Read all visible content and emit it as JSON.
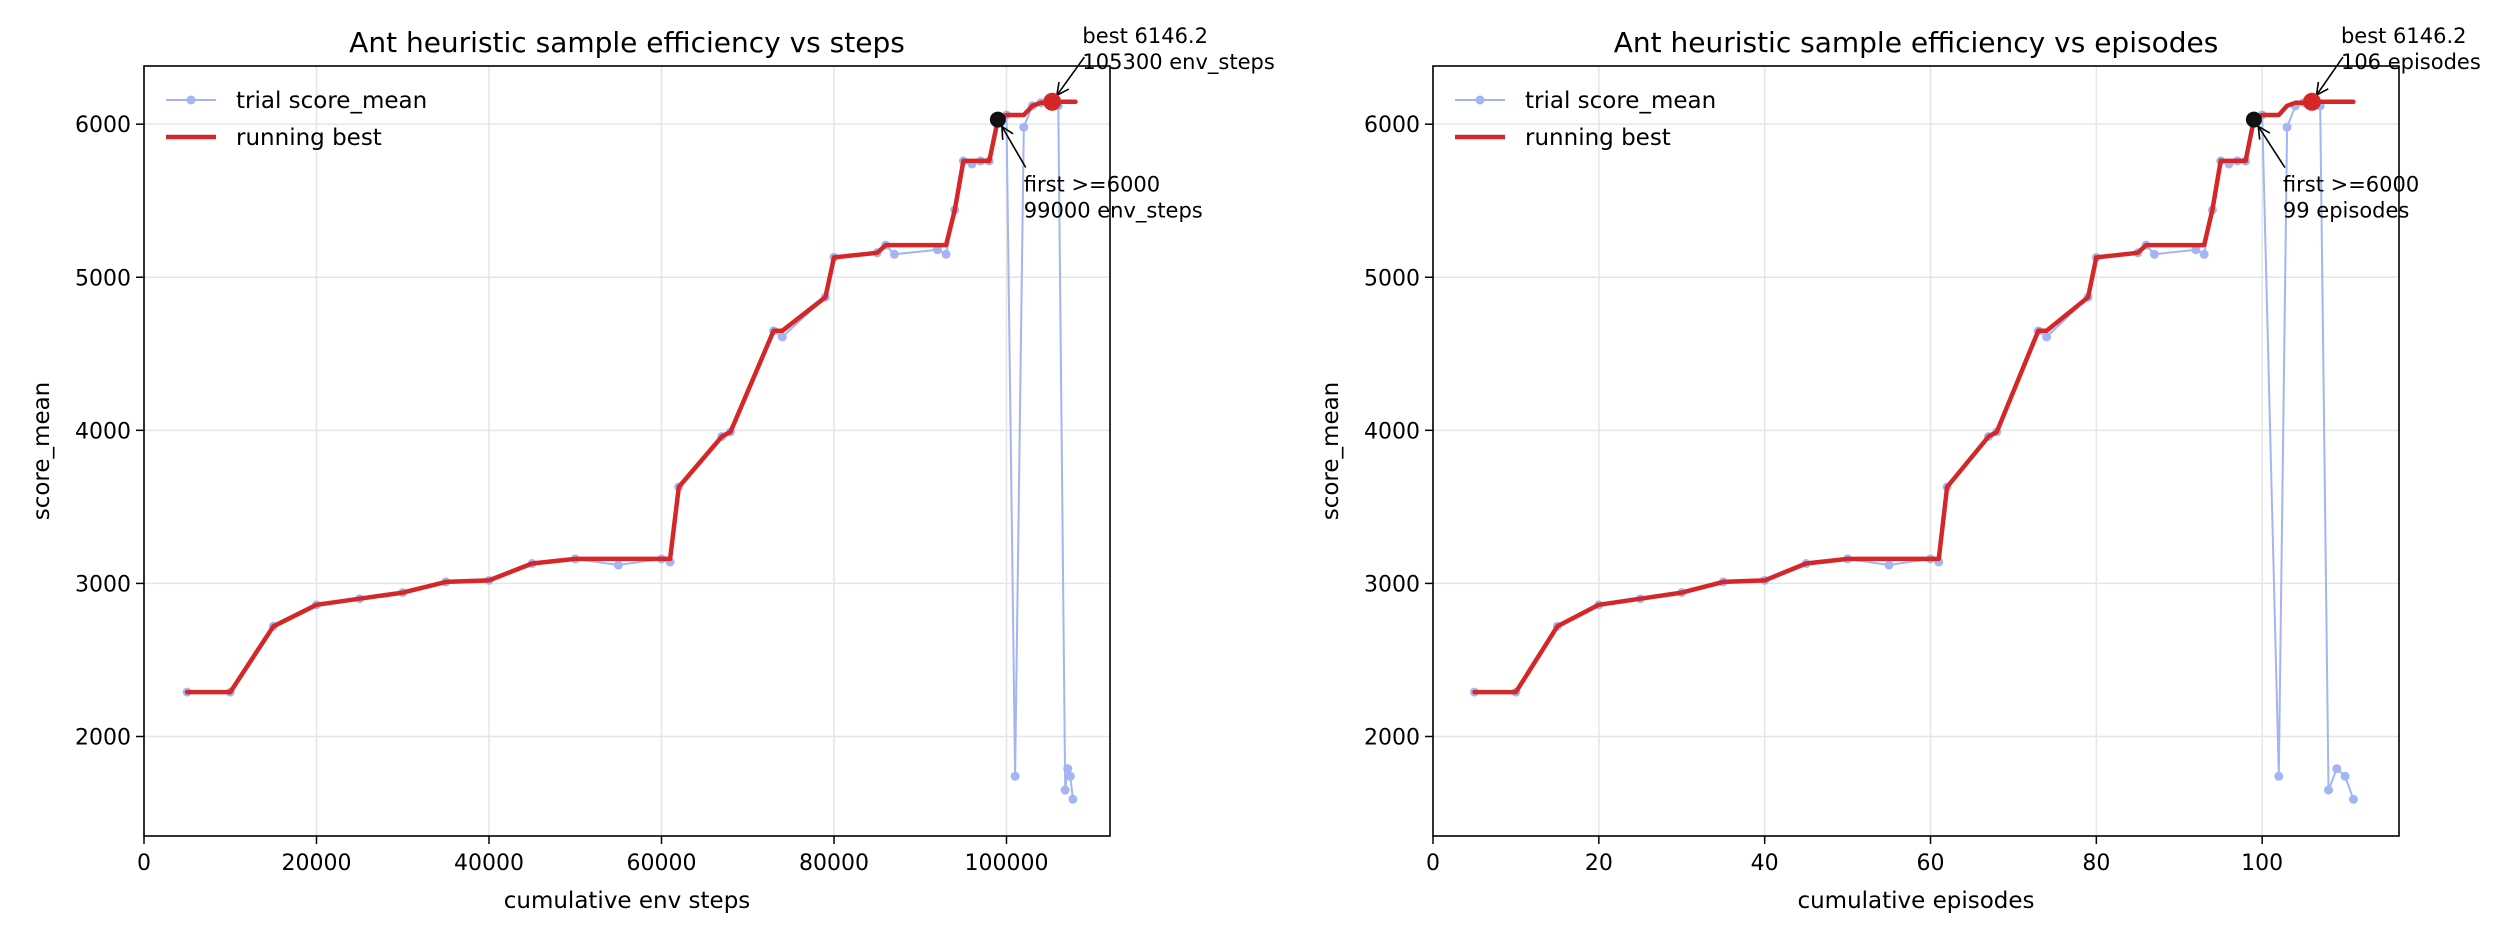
{
  "chart_data": [
    {
      "type": "line",
      "title": "Ant heuristic sample efficiency vs steps",
      "xlabel": "cumulative env steps",
      "ylabel": "score_mean",
      "xlim": [
        0,
        112000
      ],
      "ylim": [
        1350,
        6380
      ],
      "xticks": [
        0,
        20000,
        40000,
        60000,
        80000,
        100000
      ],
      "yticks": [
        2000,
        3000,
        4000,
        5000,
        6000
      ],
      "grid": true,
      "legend_position": "top-left",
      "series": [
        {
          "name": "trial score_mean",
          "style": "line-markers",
          "color": "#a3b5f3",
          "x": [
            5000,
            10000,
            15000,
            20000,
            25000,
            30000,
            35000,
            40000,
            45000,
            50000,
            55000,
            60000,
            61000,
            62000,
            67000,
            68000,
            73000,
            74000,
            79000,
            80000,
            85000,
            86000,
            87000,
            92000,
            93000,
            94000,
            95000,
            96000,
            97000,
            98000,
            99000,
            100000,
            101000,
            102000,
            103000,
            104000,
            105000,
            105300,
            106000,
            106800,
            107100,
            107400,
            107700
          ],
          "y": [
            2290,
            2290,
            2720,
            2860,
            2900,
            2940,
            3010,
            3020,
            3130,
            3160,
            3120,
            3160,
            3140,
            3630,
            3960,
            3990,
            4650,
            4610,
            4870,
            5130,
            5160,
            5210,
            5150,
            5180,
            5150,
            5440,
            5760,
            5740,
            5760,
            5760,
            6030,
            6060,
            1740,
            5980,
            6120,
            6140,
            6130,
            6146.2,
            6120,
            1650,
            1790,
            1740,
            1590
          ]
        },
        {
          "name": "running best",
          "style": "line",
          "color": "#d62728",
          "x": [
            5000,
            10000,
            15000,
            20000,
            25000,
            30000,
            35000,
            40000,
            45000,
            50000,
            55000,
            60000,
            61000,
            62000,
            67000,
            68000,
            73000,
            74000,
            79000,
            80000,
            85000,
            86000,
            92000,
            93000,
            94000,
            95000,
            96000,
            97000,
            98000,
            99000,
            100000,
            102000,
            103000,
            104000,
            105000,
            105300,
            108000
          ],
          "y": [
            2290,
            2290,
            2720,
            2860,
            2900,
            2940,
            3010,
            3020,
            3130,
            3160,
            3160,
            3160,
            3160,
            3630,
            3960,
            3990,
            4650,
            4650,
            4870,
            5130,
            5160,
            5210,
            5210,
            5210,
            5440,
            5760,
            5760,
            5760,
            5760,
            6030,
            6060,
            6060,
            6120,
            6140,
            6140,
            6146.2,
            6146.2
          ]
        }
      ],
      "annotations": [
        {
          "marker": "best",
          "color": "#d62728",
          "x": 105300,
          "y": 6146.2,
          "lines": [
            "best 6146.2",
            "105300 env_steps"
          ],
          "text_x": 108800,
          "text_y": 6530
        },
        {
          "marker": "first",
          "color": "#111111",
          "x": 99000,
          "y": 6030,
          "lines": [
            "first >=6000",
            "99000 env_steps"
          ],
          "text_x": 102000,
          "text_y": 5560
        }
      ]
    },
    {
      "type": "line",
      "title": "Ant heuristic sample efficiency vs episodes",
      "xlabel": "cumulative episodes",
      "ylabel": "score_mean",
      "xlim": [
        0,
        116.5
      ],
      "ylim": [
        1350,
        6380
      ],
      "xticks": [
        0,
        20,
        40,
        60,
        80,
        100
      ],
      "yticks": [
        2000,
        3000,
        4000,
        5000,
        6000
      ],
      "grid": true,
      "legend_position": "top-left",
      "series": [
        {
          "name": "trial score_mean",
          "style": "line-markers",
          "color": "#a3b5f3",
          "x": [
            5,
            10,
            15,
            20,
            25,
            30,
            35,
            40,
            45,
            50,
            55,
            60,
            61,
            62,
            67,
            68,
            73,
            74,
            79,
            80,
            85,
            86,
            87,
            92,
            93,
            94,
            95,
            96,
            97,
            98,
            99,
            100,
            102,
            103,
            104,
            105,
            106,
            107,
            108,
            109,
            110,
            111
          ],
          "y": [
            2290,
            2290,
            2720,
            2860,
            2900,
            2940,
            3010,
            3020,
            3130,
            3160,
            3120,
            3160,
            3140,
            3630,
            3960,
            3990,
            4650,
            4610,
            4870,
            5130,
            5160,
            5210,
            5150,
            5180,
            5150,
            5440,
            5760,
            5740,
            5760,
            5760,
            6030,
            6060,
            1740,
            5980,
            6120,
            6140,
            6146.2,
            6120,
            1650,
            1790,
            1740,
            1590
          ]
        },
        {
          "name": "running best",
          "style": "line",
          "color": "#d62728",
          "x": [
            5,
            10,
            15,
            20,
            25,
            30,
            35,
            40,
            45,
            50,
            55,
            60,
            61,
            62,
            67,
            68,
            73,
            74,
            79,
            80,
            85,
            86,
            92,
            93,
            94,
            95,
            96,
            97,
            98,
            99,
            100,
            102,
            103,
            104,
            105,
            106,
            111
          ],
          "y": [
            2290,
            2290,
            2720,
            2860,
            2900,
            2940,
            3010,
            3020,
            3130,
            3160,
            3160,
            3160,
            3160,
            3630,
            3960,
            3990,
            4650,
            4650,
            4870,
            5130,
            5160,
            5210,
            5210,
            5210,
            5440,
            5760,
            5760,
            5760,
            5760,
            6030,
            6060,
            6060,
            6120,
            6140,
            6140,
            6146.2,
            6146.2
          ]
        }
      ],
      "annotations": [
        {
          "marker": "best",
          "color": "#d62728",
          "x": 106,
          "y": 6146.2,
          "lines": [
            "best 6146.2",
            "106 episodes"
          ],
          "text_x": 109.5,
          "text_y": 6530
        },
        {
          "marker": "first",
          "color": "#111111",
          "x": 99,
          "y": 6030,
          "lines": [
            "first >=6000",
            "99 episodes"
          ],
          "text_x": 102.5,
          "text_y": 5560
        }
      ]
    }
  ]
}
